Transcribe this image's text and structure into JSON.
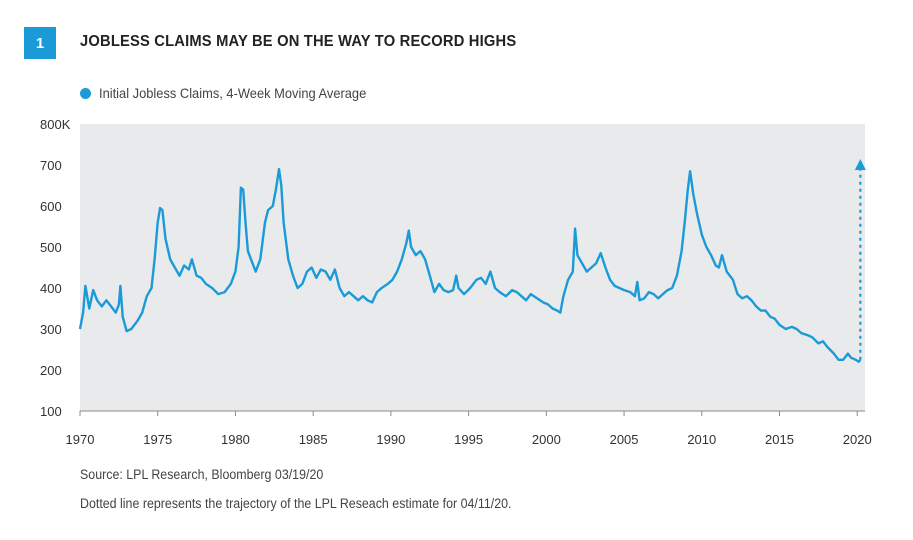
{
  "figure": {
    "number": "1",
    "title": "JOBLESS CLAIMS MAY BE ON THE WAY TO RECORD HIGHS",
    "accent_color": "#1a9bd7"
  },
  "legend": {
    "label": "Initial Jobless Claims, 4-Week Moving Average",
    "color": "#1a9bd7"
  },
  "notes": {
    "source": "Source: LPL Research, Bloomberg   03/19/20",
    "footnote": "Dotted line represents the trajectory of the LPL Reseach estimate for 04/11/20."
  },
  "chart_data": {
    "type": "line",
    "title": "JOBLESS CLAIMS MAY BE ON THE WAY TO RECORD HIGHS",
    "xlabel": "",
    "ylabel": "",
    "xlim": [
      1970,
      2020.5
    ],
    "ylim": [
      100,
      800
    ],
    "x_ticks": [
      1970,
      1975,
      1980,
      1985,
      1990,
      1995,
      2000,
      2005,
      2010,
      2015,
      2020
    ],
    "y_ticks": [
      100,
      200,
      300,
      400,
      500,
      600,
      700,
      800
    ],
    "y_tick_labels": [
      "100",
      "200",
      "300",
      "400",
      "500",
      "600",
      "700",
      "800K"
    ],
    "grid": false,
    "background": "#e9eaec",
    "legend_position": "top-left",
    "series": [
      {
        "name": "Initial Jobless Claims, 4-Week Moving Average",
        "color": "#1a9bd7",
        "points": [
          [
            1970.0,
            300
          ],
          [
            1970.2,
            340
          ],
          [
            1970.35,
            405
          ],
          [
            1970.6,
            350
          ],
          [
            1970.85,
            395
          ],
          [
            1971.1,
            370
          ],
          [
            1971.4,
            355
          ],
          [
            1971.7,
            370
          ],
          [
            1972.0,
            355
          ],
          [
            1972.3,
            340
          ],
          [
            1972.5,
            360
          ],
          [
            1972.6,
            405
          ],
          [
            1972.75,
            330
          ],
          [
            1973.0,
            295
          ],
          [
            1973.3,
            300
          ],
          [
            1973.7,
            320
          ],
          [
            1974.0,
            340
          ],
          [
            1974.3,
            380
          ],
          [
            1974.6,
            400
          ],
          [
            1974.8,
            470
          ],
          [
            1975.0,
            560
          ],
          [
            1975.15,
            595
          ],
          [
            1975.3,
            590
          ],
          [
            1975.5,
            520
          ],
          [
            1975.8,
            470
          ],
          [
            1976.1,
            450
          ],
          [
            1976.4,
            430
          ],
          [
            1976.7,
            455
          ],
          [
            1977.0,
            445
          ],
          [
            1977.2,
            470
          ],
          [
            1977.5,
            430
          ],
          [
            1977.8,
            425
          ],
          [
            1978.1,
            410
          ],
          [
            1978.5,
            400
          ],
          [
            1978.9,
            385
          ],
          [
            1979.3,
            390
          ],
          [
            1979.7,
            410
          ],
          [
            1980.0,
            440
          ],
          [
            1980.2,
            500
          ],
          [
            1980.35,
            645
          ],
          [
            1980.5,
            640
          ],
          [
            1980.65,
            560
          ],
          [
            1980.8,
            490
          ],
          [
            1981.0,
            470
          ],
          [
            1981.3,
            440
          ],
          [
            1981.6,
            470
          ],
          [
            1981.9,
            560
          ],
          [
            1982.1,
            590
          ],
          [
            1982.4,
            600
          ],
          [
            1982.6,
            640
          ],
          [
            1982.8,
            690
          ],
          [
            1982.95,
            650
          ],
          [
            1983.1,
            560
          ],
          [
            1983.4,
            470
          ],
          [
            1983.7,
            430
          ],
          [
            1984.0,
            400
          ],
          [
            1984.3,
            410
          ],
          [
            1984.6,
            440
          ],
          [
            1984.9,
            450
          ],
          [
            1985.2,
            425
          ],
          [
            1985.5,
            445
          ],
          [
            1985.8,
            440
          ],
          [
            1986.1,
            420
          ],
          [
            1986.4,
            445
          ],
          [
            1986.7,
            400
          ],
          [
            1987.0,
            380
          ],
          [
            1987.3,
            390
          ],
          [
            1987.6,
            380
          ],
          [
            1987.9,
            370
          ],
          [
            1988.2,
            380
          ],
          [
            1988.5,
            370
          ],
          [
            1988.8,
            365
          ],
          [
            1989.1,
            390
          ],
          [
            1989.4,
            400
          ],
          [
            1989.8,
            410
          ],
          [
            1990.1,
            420
          ],
          [
            1990.4,
            440
          ],
          [
            1990.7,
            470
          ],
          [
            1991.0,
            510
          ],
          [
            1991.15,
            540
          ],
          [
            1991.3,
            500
          ],
          [
            1991.6,
            480
          ],
          [
            1991.9,
            490
          ],
          [
            1992.2,
            470
          ],
          [
            1992.5,
            430
          ],
          [
            1992.8,
            390
          ],
          [
            1993.1,
            410
          ],
          [
            1993.4,
            395
          ],
          [
            1993.7,
            390
          ],
          [
            1994.0,
            395
          ],
          [
            1994.2,
            430
          ],
          [
            1994.35,
            400
          ],
          [
            1994.7,
            385
          ],
          [
            1995.1,
            400
          ],
          [
            1995.5,
            420
          ],
          [
            1995.8,
            425
          ],
          [
            1996.1,
            410
          ],
          [
            1996.4,
            440
          ],
          [
            1996.7,
            400
          ],
          [
            1997.0,
            390
          ],
          [
            1997.4,
            380
          ],
          [
            1997.8,
            395
          ],
          [
            1998.1,
            390
          ],
          [
            1998.4,
            380
          ],
          [
            1998.7,
            370
          ],
          [
            1999.0,
            385
          ],
          [
            1999.4,
            375
          ],
          [
            1999.8,
            365
          ],
          [
            2000.1,
            360
          ],
          [
            2000.4,
            350
          ],
          [
            2000.7,
            345
          ],
          [
            2000.9,
            340
          ],
          [
            2001.1,
            380
          ],
          [
            2001.4,
            420
          ],
          [
            2001.7,
            440
          ],
          [
            2001.85,
            545
          ],
          [
            2002.0,
            480
          ],
          [
            2002.3,
            460
          ],
          [
            2002.6,
            440
          ],
          [
            2002.9,
            450
          ],
          [
            2003.2,
            460
          ],
          [
            2003.5,
            485
          ],
          [
            2003.8,
            450
          ],
          [
            2004.1,
            420
          ],
          [
            2004.4,
            405
          ],
          [
            2004.7,
            400
          ],
          [
            2005.0,
            395
          ],
          [
            2005.4,
            390
          ],
          [
            2005.7,
            380
          ],
          [
            2005.85,
            415
          ],
          [
            2006.0,
            370
          ],
          [
            2006.3,
            375
          ],
          [
            2006.6,
            390
          ],
          [
            2006.9,
            385
          ],
          [
            2007.2,
            375
          ],
          [
            2007.5,
            385
          ],
          [
            2007.8,
            395
          ],
          [
            2008.1,
            400
          ],
          [
            2008.4,
            430
          ],
          [
            2008.7,
            490
          ],
          [
            2008.9,
            560
          ],
          [
            2009.1,
            640
          ],
          [
            2009.25,
            685
          ],
          [
            2009.45,
            630
          ],
          [
            2009.7,
            580
          ],
          [
            2010.0,
            530
          ],
          [
            2010.3,
            500
          ],
          [
            2010.6,
            480
          ],
          [
            2010.9,
            455
          ],
          [
            2011.1,
            450
          ],
          [
            2011.3,
            480
          ],
          [
            2011.6,
            440
          ],
          [
            2012.0,
            420
          ],
          [
            2012.3,
            385
          ],
          [
            2012.6,
            375
          ],
          [
            2012.9,
            380
          ],
          [
            2013.2,
            370
          ],
          [
            2013.5,
            355
          ],
          [
            2013.8,
            345
          ],
          [
            2014.1,
            345
          ],
          [
            2014.4,
            330
          ],
          [
            2014.7,
            325
          ],
          [
            2015.0,
            310
          ],
          [
            2015.4,
            300
          ],
          [
            2015.8,
            305
          ],
          [
            2016.1,
            300
          ],
          [
            2016.4,
            290
          ],
          [
            2016.8,
            285
          ],
          [
            2017.1,
            280
          ],
          [
            2017.5,
            265
          ],
          [
            2017.8,
            270
          ],
          [
            2018.1,
            255
          ],
          [
            2018.5,
            240
          ],
          [
            2018.8,
            225
          ],
          [
            2019.1,
            225
          ],
          [
            2019.4,
            240
          ],
          [
            2019.6,
            230
          ],
          [
            2019.9,
            225
          ],
          [
            2020.1,
            220
          ],
          [
            2020.2,
            225
          ]
        ]
      },
      {
        "name": "LPL Research estimate (04/11/20)",
        "color": "#1a9bd7",
        "style": "dotted-arrow",
        "points": [
          [
            2020.2,
            225
          ],
          [
            2020.2,
            705
          ]
        ]
      }
    ]
  }
}
